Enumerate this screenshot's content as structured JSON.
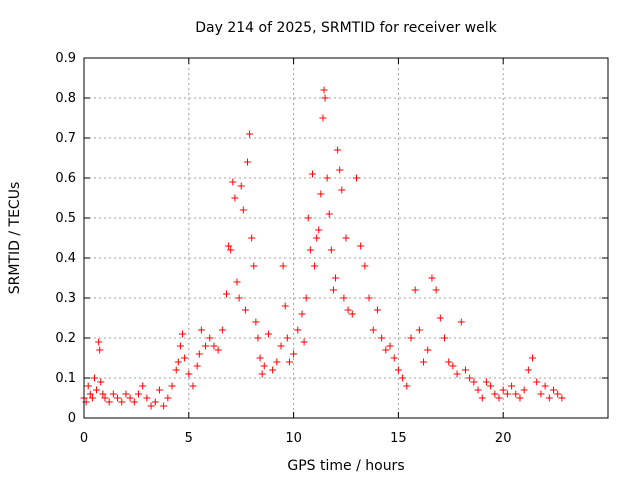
{
  "chart_data": {
    "type": "scatter",
    "title": "Day 214 of 2025, SRMTID for receiver welk",
    "xlabel": "GPS time / hours",
    "ylabel": "SRMTID / TECUs",
    "xlim": [
      0,
      25
    ],
    "ylim": [
      0,
      0.9
    ],
    "xticks": [
      0,
      5,
      10,
      15,
      20
    ],
    "yticks": [
      0,
      0.1,
      0.2,
      0.3,
      0.4,
      0.5,
      0.6,
      0.7,
      0.8,
      0.9
    ],
    "xtick_labels": [
      "0",
      "5",
      "10",
      "15",
      "20"
    ],
    "ytick_labels": [
      "0",
      "0.1",
      "0.2",
      "0.3",
      "0.4",
      "0.5",
      "0.6",
      "0.7",
      "0.8",
      "0.9"
    ],
    "grid": true,
    "marker": "+",
    "color": "#ff0000",
    "series": [
      {
        "name": "SRMTID",
        "x": [
          0.0,
          0.1,
          0.2,
          0.3,
          0.4,
          0.5,
          0.6,
          0.7,
          0.75,
          0.8,
          0.9,
          1.0,
          1.2,
          1.4,
          1.6,
          1.8,
          2.0,
          2.2,
          2.4,
          2.6,
          2.8,
          3.0,
          3.2,
          3.4,
          3.6,
          3.8,
          4.0,
          4.2,
          4.4,
          4.5,
          4.6,
          4.7,
          4.8,
          5.0,
          5.2,
          5.4,
          5.5,
          5.6,
          5.8,
          6.0,
          6.2,
          6.4,
          6.6,
          6.8,
          6.9,
          7.0,
          7.1,
          7.2,
          7.3,
          7.4,
          7.5,
          7.6,
          7.7,
          7.8,
          7.9,
          8.0,
          8.1,
          8.2,
          8.3,
          8.4,
          8.5,
          8.6,
          8.8,
          9.0,
          9.2,
          9.4,
          9.5,
          9.6,
          9.7,
          9.8,
          10.0,
          10.2,
          10.4,
          10.5,
          10.6,
          10.7,
          10.8,
          10.9,
          11.0,
          11.1,
          11.2,
          11.3,
          11.4,
          11.45,
          11.5,
          11.6,
          11.7,
          11.8,
          11.9,
          12.0,
          12.1,
          12.2,
          12.3,
          12.4,
          12.5,
          12.6,
          12.8,
          13.0,
          13.2,
          13.4,
          13.6,
          13.8,
          14.0,
          14.2,
          14.4,
          14.6,
          14.8,
          15.0,
          15.2,
          15.4,
          15.6,
          15.8,
          16.0,
          16.2,
          16.4,
          16.6,
          16.8,
          17.0,
          17.2,
          17.4,
          17.6,
          17.8,
          18.0,
          18.2,
          18.4,
          18.6,
          18.8,
          19.0,
          19.2,
          19.4,
          19.6,
          19.8,
          20.0,
          20.2,
          20.4,
          20.6,
          20.8,
          21.0,
          21.2,
          21.4,
          21.6,
          21.8,
          22.0,
          22.2,
          22.4,
          22.6,
          22.8
        ],
        "y": [
          0.05,
          0.04,
          0.08,
          0.06,
          0.05,
          0.1,
          0.07,
          0.19,
          0.17,
          0.09,
          0.06,
          0.05,
          0.04,
          0.06,
          0.05,
          0.04,
          0.06,
          0.05,
          0.04,
          0.06,
          0.08,
          0.05,
          0.03,
          0.04,
          0.07,
          0.03,
          0.05,
          0.08,
          0.12,
          0.14,
          0.18,
          0.21,
          0.15,
          0.11,
          0.08,
          0.13,
          0.16,
          0.22,
          0.18,
          0.2,
          0.18,
          0.17,
          0.22,
          0.31,
          0.43,
          0.42,
          0.59,
          0.55,
          0.34,
          0.3,
          0.58,
          0.52,
          0.27,
          0.64,
          0.71,
          0.45,
          0.38,
          0.24,
          0.2,
          0.15,
          0.11,
          0.13,
          0.21,
          0.12,
          0.14,
          0.18,
          0.38,
          0.28,
          0.2,
          0.14,
          0.16,
          0.22,
          0.26,
          0.19,
          0.3,
          0.5,
          0.42,
          0.61,
          0.38,
          0.45,
          0.47,
          0.56,
          0.75,
          0.82,
          0.8,
          0.6,
          0.51,
          0.42,
          0.32,
          0.35,
          0.67,
          0.62,
          0.57,
          0.3,
          0.45,
          0.27,
          0.26,
          0.6,
          0.43,
          0.38,
          0.3,
          0.22,
          0.27,
          0.2,
          0.17,
          0.18,
          0.15,
          0.12,
          0.1,
          0.08,
          0.2,
          0.32,
          0.22,
          0.14,
          0.17,
          0.35,
          0.32,
          0.25,
          0.2,
          0.14,
          0.13,
          0.11,
          0.24,
          0.12,
          0.1,
          0.09,
          0.07,
          0.05,
          0.09,
          0.08,
          0.06,
          0.05,
          0.07,
          0.06,
          0.08,
          0.06,
          0.05,
          0.07,
          0.12,
          0.15,
          0.09,
          0.06,
          0.08,
          0.05,
          0.07,
          0.06,
          0.05
        ]
      }
    ]
  }
}
